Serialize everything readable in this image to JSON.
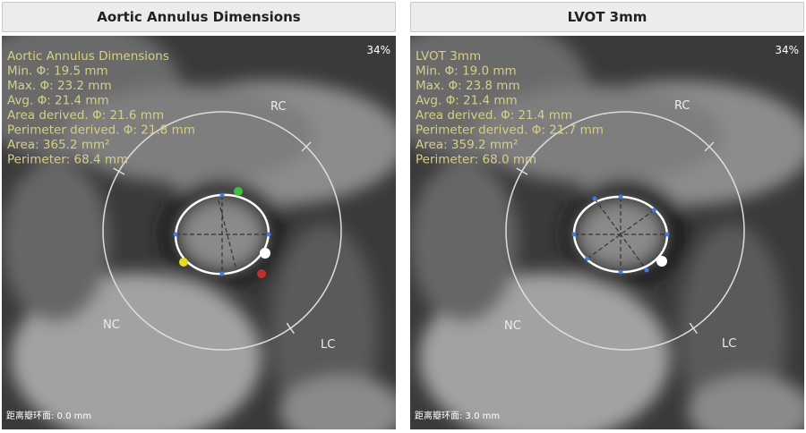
{
  "panels": [
    {
      "header": "Aortic Annulus Dimensions",
      "measurements": [
        "Aortic Annulus Dimensions",
        "Min. Φ: 19.5 mm",
        "Max. Φ: 23.2 mm",
        "Avg. Φ: 21.4 mm",
        "Area derived. Φ: 21.6 mm",
        "Perimeter derived. Φ: 21.8 mm",
        "Area: 365.2 mm²",
        "Perimeter: 68.4 mm"
      ],
      "zoom": "34%",
      "cusps": [
        "RC",
        "NC",
        "LC"
      ],
      "footer": "距离瓣环面: 0.0 mm"
    },
    {
      "header": "LVOT 3mm",
      "measurements": [
        "LVOT 3mm",
        "Min. Φ: 19.0 mm",
        "Max. Φ: 23.8 mm",
        "Avg. Φ: 21.4 mm",
        "Area derived. Φ: 21.4 mm",
        "Perimeter derived. Φ: 21.7 mm",
        "Area: 359.2 mm²",
        "Perimeter: 68.0 mm"
      ],
      "zoom": "34%",
      "cusps": [
        "RC",
        "NC",
        "LC"
      ],
      "footer": "距离瓣环面: 3.0 mm"
    }
  ]
}
